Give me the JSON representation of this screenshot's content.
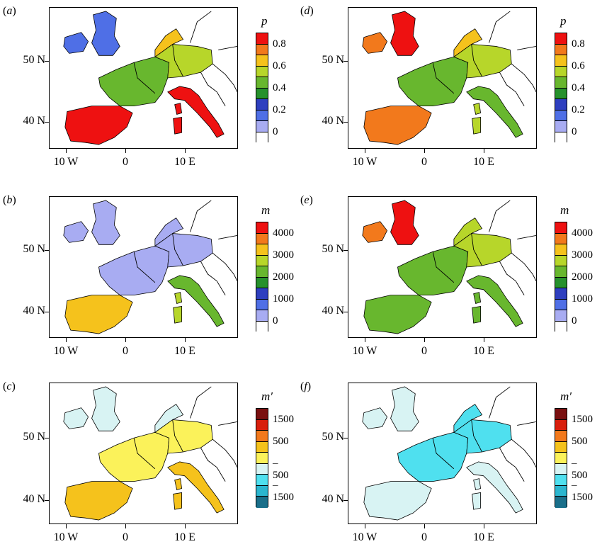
{
  "panels": [
    {
      "id": "a",
      "label": "a",
      "cbar": "p",
      "cmap": "p"
    },
    {
      "id": "b",
      "label": "b",
      "cbar": "m",
      "cmap": "m_b"
    },
    {
      "id": "c",
      "label": "c",
      "cbar": "mprime",
      "cmap": "mp_c"
    },
    {
      "id": "d",
      "label": "d",
      "cbar": "p",
      "cmap": "p_d"
    },
    {
      "id": "e",
      "label": "e",
      "cbar": "m",
      "cmap": "m_e"
    },
    {
      "id": "f",
      "label": "f",
      "cbar": "mprime",
      "cmap": "mp_f"
    }
  ],
  "axes": {
    "y_ticks": [
      "50 N",
      "40 N"
    ],
    "x_ticks": [
      "10 W",
      "0",
      "10 E"
    ]
  },
  "colorbars": {
    "p": {
      "title": "p",
      "ticks": [
        "0.8",
        "0.6",
        "0.4",
        "0.2",
        "0"
      ],
      "colors": [
        "#ee1111",
        "#f2791c",
        "#f5c21c",
        "#b7d62a",
        "#68b72e",
        "#26912c",
        "#2e3fbf",
        "#4f6fe6",
        "#a8acf2",
        "#ffffff"
      ]
    },
    "m": {
      "title": "m",
      "ticks": [
        "4000",
        "3000",
        "2000",
        "1000",
        "0"
      ],
      "colors": [
        "#ee1111",
        "#f2791c",
        "#f5c21c",
        "#b7d62a",
        "#68b72e",
        "#26912c",
        "#2e3fbf",
        "#4f6fe6",
        "#a8acf2",
        "#ffffff"
      ]
    },
    "mprime": {
      "title": "m′",
      "ticks": [
        "1500",
        "500",
        "–500",
        "–1500"
      ],
      "colors": [
        "#7a1010",
        "#d81e0c",
        "#f2791c",
        "#f5c21c",
        "#fbf25a",
        "#d8f3f3",
        "#4fe0ef",
        "#2bb6cf",
        "#1a6f8a"
      ]
    }
  }
}
